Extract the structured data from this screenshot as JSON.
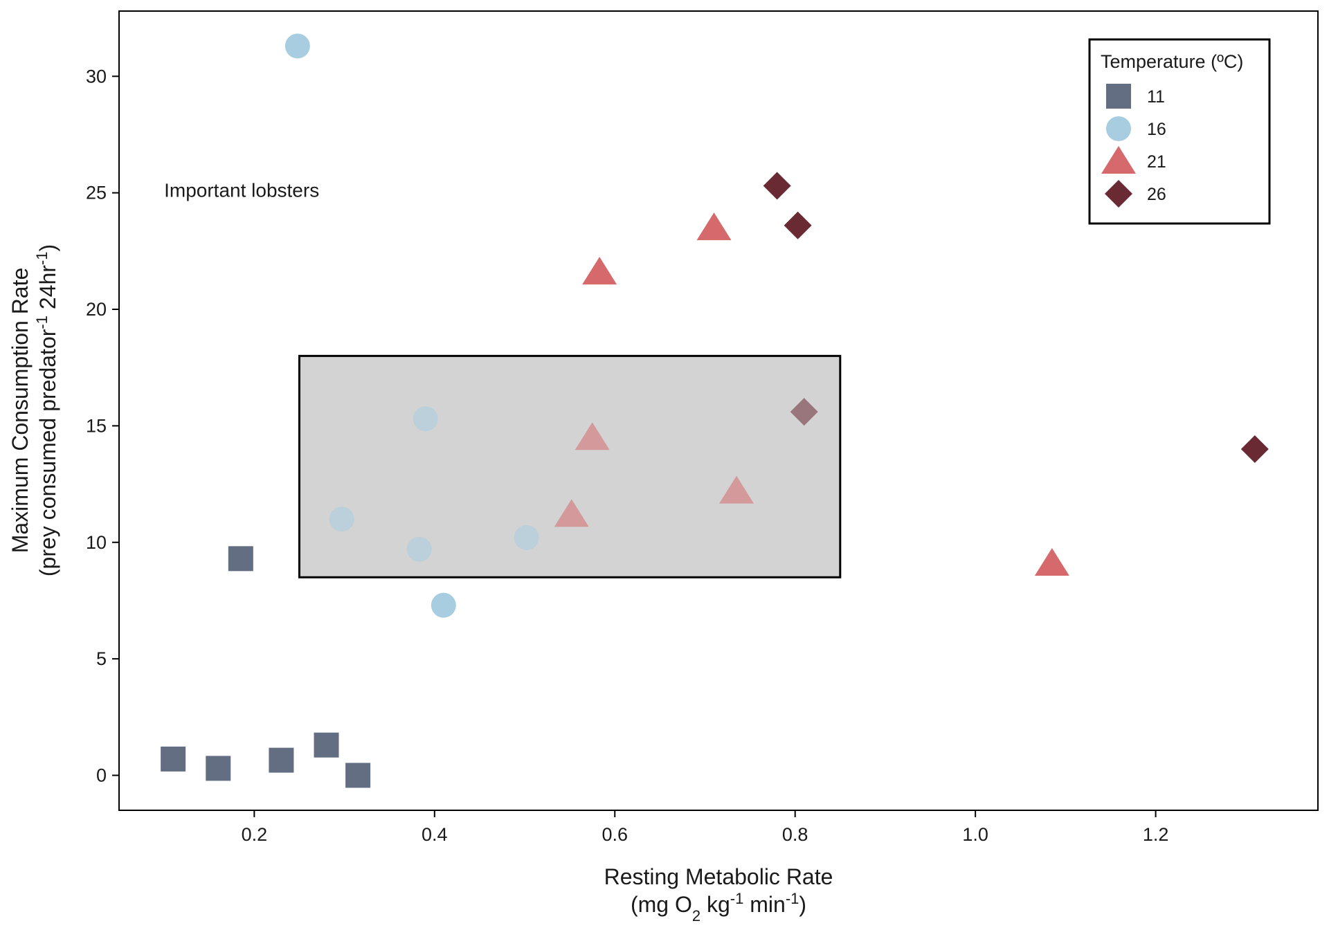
{
  "chart_data": {
    "type": "scatter",
    "xlabel_line1": "Resting Metabolic Rate",
    "xlabel_line2": {
      "a": "(mg O",
      "sub": "2",
      "b": " kg",
      "sup1": "-1",
      "c": " min",
      "sup2": "-1",
      "d": ")"
    },
    "ylabel_line1": "Maximum Consumption Rate",
    "ylabel_line2": {
      "a": "(prey consumed predator",
      "sup1": "-1",
      "b": " 24hr",
      "sup2": "-1",
      "c": ")"
    },
    "xlim": [
      0.05,
      1.38
    ],
    "ylim": [
      -1.5,
      32.8
    ],
    "x_ticks": [
      0.2,
      0.4,
      0.6,
      0.8,
      1.0,
      1.2
    ],
    "x_tick_labels": [
      "0.2",
      "0.4",
      "0.6",
      "0.8",
      "1.0",
      "1.2"
    ],
    "y_ticks": [
      0,
      5,
      10,
      15,
      20,
      25,
      30
    ],
    "y_tick_labels": [
      "0",
      "5",
      "10",
      "15",
      "20",
      "25",
      "30"
    ],
    "grid": false,
    "legend": {
      "title": "Temperature (ºC)",
      "placement": "top-right"
    },
    "annotation": {
      "text": "Important lobsters",
      "x": 0.1,
      "y": 25.1
    },
    "highlight_box": {
      "x0": 0.25,
      "x1": 0.85,
      "y0": 8.5,
      "y1": 18.0,
      "fill": "#d3d3d3",
      "stroke": "#000000"
    },
    "series": [
      {
        "name": "11",
        "shape": "square",
        "color": "#646e82",
        "points": [
          [
            0.11,
            0.7
          ],
          [
            0.16,
            0.3
          ],
          [
            0.185,
            9.3
          ],
          [
            0.23,
            0.65
          ],
          [
            0.28,
            1.3
          ],
          [
            0.315,
            0.0
          ]
        ]
      },
      {
        "name": "16",
        "shape": "circle",
        "color": "#a8cde0",
        "points": [
          [
            0.248,
            31.3
          ],
          [
            0.297,
            11.0
          ],
          [
            0.383,
            9.7
          ],
          [
            0.39,
            15.3
          ],
          [
            0.41,
            7.3
          ],
          [
            0.502,
            10.2
          ]
        ]
      },
      {
        "name": "21",
        "shape": "triangle",
        "color": "#d5696b",
        "points": [
          [
            0.552,
            11.2
          ],
          [
            0.575,
            14.5
          ],
          [
            0.583,
            21.6
          ],
          [
            0.71,
            23.5
          ],
          [
            0.735,
            12.2
          ],
          [
            1.085,
            9.1
          ]
        ]
      },
      {
        "name": "26",
        "shape": "diamond",
        "color": "#6a2a33",
        "points": [
          [
            0.78,
            25.3
          ],
          [
            0.803,
            23.6
          ],
          [
            0.81,
            15.6
          ],
          [
            1.31,
            14.0
          ]
        ]
      }
    ]
  }
}
